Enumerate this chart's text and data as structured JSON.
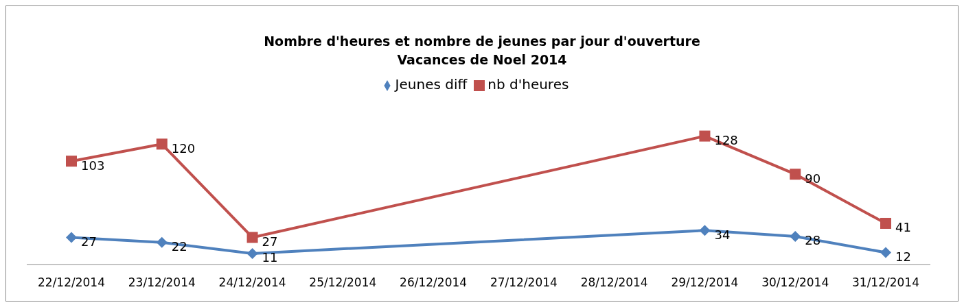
{
  "chart_data": {
    "type": "line",
    "title": "Nombre d'heures et nombre de jeunes par jour d'ouverture",
    "subtitle": "Vacances de Noel 2014",
    "categories": [
      "22/12/2014",
      "23/12/2014",
      "24/12/2014",
      "25/12/2014",
      "26/12/2014",
      "27/12/2014",
      "28/12/2014",
      "29/12/2014",
      "30/12/2014",
      "31/12/2014"
    ],
    "series": [
      {
        "name": "Jeunes diff",
        "color": "#4f81bd",
        "marker": "diamond",
        "values": [
          27,
          22,
          11,
          null,
          null,
          null,
          null,
          34,
          28,
          12
        ]
      },
      {
        "name": "nb d'heures",
        "color": "#c0504d",
        "marker": "square",
        "values": [
          103,
          120,
          27,
          null,
          null,
          null,
          null,
          128,
          90,
          41
        ]
      }
    ],
    "data_labels": true,
    "legend": "top",
    "grid": false,
    "line_style": "solid"
  }
}
